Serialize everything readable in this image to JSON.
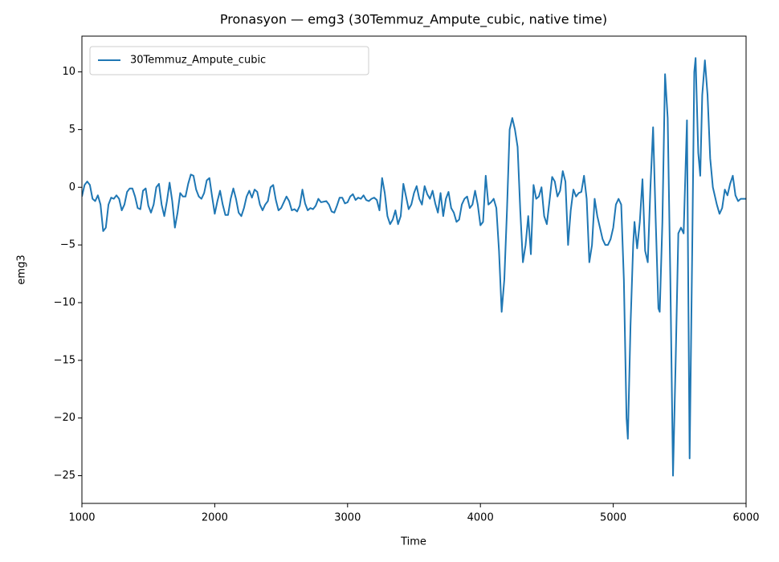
{
  "chart_data": {
    "type": "line",
    "title": "Pronasyon — emg3 (30Temmuz_Ampute_cubic, native time)",
    "x_label": "Time",
    "y_label": "emg3",
    "x": [
      1000,
      1020,
      1040,
      1060,
      1080,
      1100,
      1120,
      1140,
      1160,
      1180,
      1200,
      1220,
      1240,
      1260,
      1280,
      1300,
      1320,
      1340,
      1360,
      1380,
      1400,
      1420,
      1440,
      1460,
      1480,
      1500,
      1520,
      1540,
      1560,
      1580,
      1600,
      1620,
      1640,
      1660,
      1680,
      1700,
      1720,
      1740,
      1760,
      1780,
      1800,
      1820,
      1840,
      1860,
      1880,
      1900,
      1920,
      1940,
      1960,
      1980,
      2000,
      2020,
      2040,
      2060,
      2080,
      2100,
      2120,
      2140,
      2160,
      2180,
      2200,
      2220,
      2240,
      2260,
      2280,
      2300,
      2320,
      2340,
      2360,
      2380,
      2400,
      2420,
      2440,
      2460,
      2480,
      2500,
      2520,
      2540,
      2560,
      2580,
      2600,
      2620,
      2640,
      2660,
      2680,
      2700,
      2720,
      2740,
      2760,
      2780,
      2800,
      2840,
      2860,
      2880,
      2900,
      2920,
      2940,
      2960,
      2980,
      3000,
      3020,
      3040,
      3060,
      3080,
      3100,
      3120,
      3140,
      3160,
      3180,
      3200,
      3220,
      3240,
      3260,
      3280,
      3300,
      3320,
      3340,
      3360,
      3380,
      3400,
      3420,
      3440,
      3460,
      3480,
      3500,
      3520,
      3540,
      3560,
      3580,
      3600,
      3620,
      3640,
      3660,
      3680,
      3700,
      3720,
      3740,
      3760,
      3780,
      3800,
      3820,
      3840,
      3860,
      3880,
      3900,
      3920,
      3940,
      3960,
      3980,
      4000,
      4020,
      4040,
      4060,
      4080,
      4100,
      4120,
      4140,
      4160,
      4180,
      4200,
      4220,
      4240,
      4260,
      4280,
      4300,
      4320,
      4340,
      4360,
      4380,
      4400,
      4420,
      4440,
      4460,
      4480,
      4500,
      4520,
      4540,
      4560,
      4580,
      4600,
      4620,
      4640,
      4660,
      4680,
      4700,
      4720,
      4740,
      4760,
      4780,
      4800,
      4820,
      4840,
      4860,
      4880,
      4900,
      4920,
      4940,
      4960,
      4980,
      5000,
      5020,
      5040,
      5060,
      5080,
      5100,
      5110,
      5130,
      5150,
      5160,
      5180,
      5200,
      5220,
      5240,
      5260,
      5280,
      5300,
      5320,
      5340,
      5350,
      5370,
      5390,
      5410,
      5430,
      5450,
      5470,
      5490,
      5510,
      5530,
      5555,
      5575,
      5595,
      5610,
      5620,
      5640,
      5655,
      5670,
      5690,
      5710,
      5730,
      5750,
      5780,
      5800,
      5820,
      5840,
      5860,
      5880,
      5900,
      5920,
      5940,
      5960,
      6000
    ],
    "series": [
      {
        "name": "30Temmuz_Ampute_cubic",
        "color": "#1f77b4",
        "values": [
          -0.8,
          0.2,
          0.5,
          0.2,
          -1.0,
          -1.2,
          -0.7,
          -1.5,
          -3.8,
          -3.5,
          -1.5,
          -0.9,
          -1.0,
          -0.7,
          -1.0,
          -2.0,
          -1.5,
          -0.4,
          -0.1,
          -0.1,
          -0.8,
          -1.8,
          -1.9,
          -0.3,
          -0.1,
          -1.6,
          -2.2,
          -1.5,
          0.0,
          0.3,
          -1.5,
          -2.5,
          -1.2,
          0.4,
          -1.2,
          -3.5,
          -2.2,
          -0.5,
          -0.8,
          -0.8,
          0.3,
          1.1,
          1.0,
          -0.2,
          -0.8,
          -1.0,
          -0.5,
          0.6,
          0.8,
          -0.8,
          -2.3,
          -1.2,
          -0.3,
          -1.5,
          -2.4,
          -2.4,
          -1.0,
          -0.1,
          -1.0,
          -2.2,
          -2.5,
          -1.8,
          -0.8,
          -0.3,
          -0.9,
          -0.2,
          -0.4,
          -1.5,
          -2.0,
          -1.5,
          -1.2,
          0.0,
          0.2,
          -1.1,
          -2.0,
          -1.8,
          -1.3,
          -0.8,
          -1.2,
          -2.0,
          -1.9,
          -2.1,
          -1.6,
          -0.2,
          -1.4,
          -2.0,
          -1.8,
          -1.9,
          -1.6,
          -1.0,
          -1.3,
          -1.2,
          -1.5,
          -2.1,
          -2.2,
          -1.6,
          -0.9,
          -0.9,
          -1.4,
          -1.3,
          -0.8,
          -0.6,
          -1.1,
          -0.9,
          -1.0,
          -0.7,
          -1.1,
          -1.2,
          -1.0,
          -0.9,
          -1.1,
          -2.0,
          0.8,
          -0.5,
          -2.5,
          -3.2,
          -2.8,
          -2.0,
          -3.2,
          -2.5,
          0.3,
          -0.8,
          -1.9,
          -1.5,
          -0.5,
          0.1,
          -1.0,
          -1.5,
          0.1,
          -0.6,
          -1.0,
          -0.3,
          -1.4,
          -2.2,
          -0.5,
          -2.5,
          -1.0,
          -0.4,
          -1.8,
          -2.2,
          -3.0,
          -2.8,
          -1.5,
          -1.0,
          -0.8,
          -1.8,
          -1.5,
          -0.3,
          -1.5,
          -3.3,
          -3.0,
          1.0,
          -1.5,
          -1.3,
          -1.0,
          -1.8,
          -5.5,
          -10.8,
          -8.0,
          -2.0,
          5.0,
          6.0,
          5.0,
          3.5,
          -2.0,
          -6.5,
          -5.0,
          -2.5,
          -5.8,
          0.2,
          -1.0,
          -0.8,
          0.0,
          -2.5,
          -3.2,
          -1.2,
          0.9,
          0.5,
          -0.8,
          -0.3,
          1.4,
          0.5,
          -5.0,
          -2.0,
          -0.2,
          -0.8,
          -0.5,
          -0.4,
          1.0,
          -1.0,
          -6.5,
          -5.0,
          -1.0,
          -2.5,
          -3.5,
          -4.5,
          -5.0,
          -5.0,
          -4.5,
          -3.5,
          -1.5,
          -1.0,
          -1.5,
          -8.0,
          -20.0,
          -21.8,
          -12.0,
          -5.0,
          -3.0,
          -5.3,
          -3.0,
          0.7,
          -5.5,
          -6.5,
          0.0,
          5.2,
          -3.0,
          -10.5,
          -10.8,
          -3.0,
          9.8,
          6.0,
          -8.0,
          -25.0,
          -15.0,
          -4.0,
          -3.5,
          -4.0,
          5.8,
          -23.5,
          -5.0,
          10.0,
          11.2,
          3.0,
          1.0,
          8.0,
          11.0,
          8.0,
          2.5,
          0.0,
          -1.5,
          -2.3,
          -1.8,
          -0.2,
          -0.7,
          0.3,
          1.0,
          -0.7,
          -1.2,
          -1.0,
          -1.0
        ]
      }
    ],
    "xlim": [
      1000,
      6000
    ],
    "xticks": [
      1000,
      2000,
      3000,
      4000,
      5000,
      6000
    ],
    "ylim": [
      -27.4,
      13.1
    ],
    "yticks": [
      {
        "value": -25,
        "label": "−25"
      },
      {
        "value": -20,
        "label": "−20"
      },
      {
        "value": -15,
        "label": "−15"
      },
      {
        "value": -10,
        "label": "−10"
      },
      {
        "value": -5,
        "label": "−5"
      },
      0,
      5,
      10
    ],
    "legend": "upper left"
  }
}
